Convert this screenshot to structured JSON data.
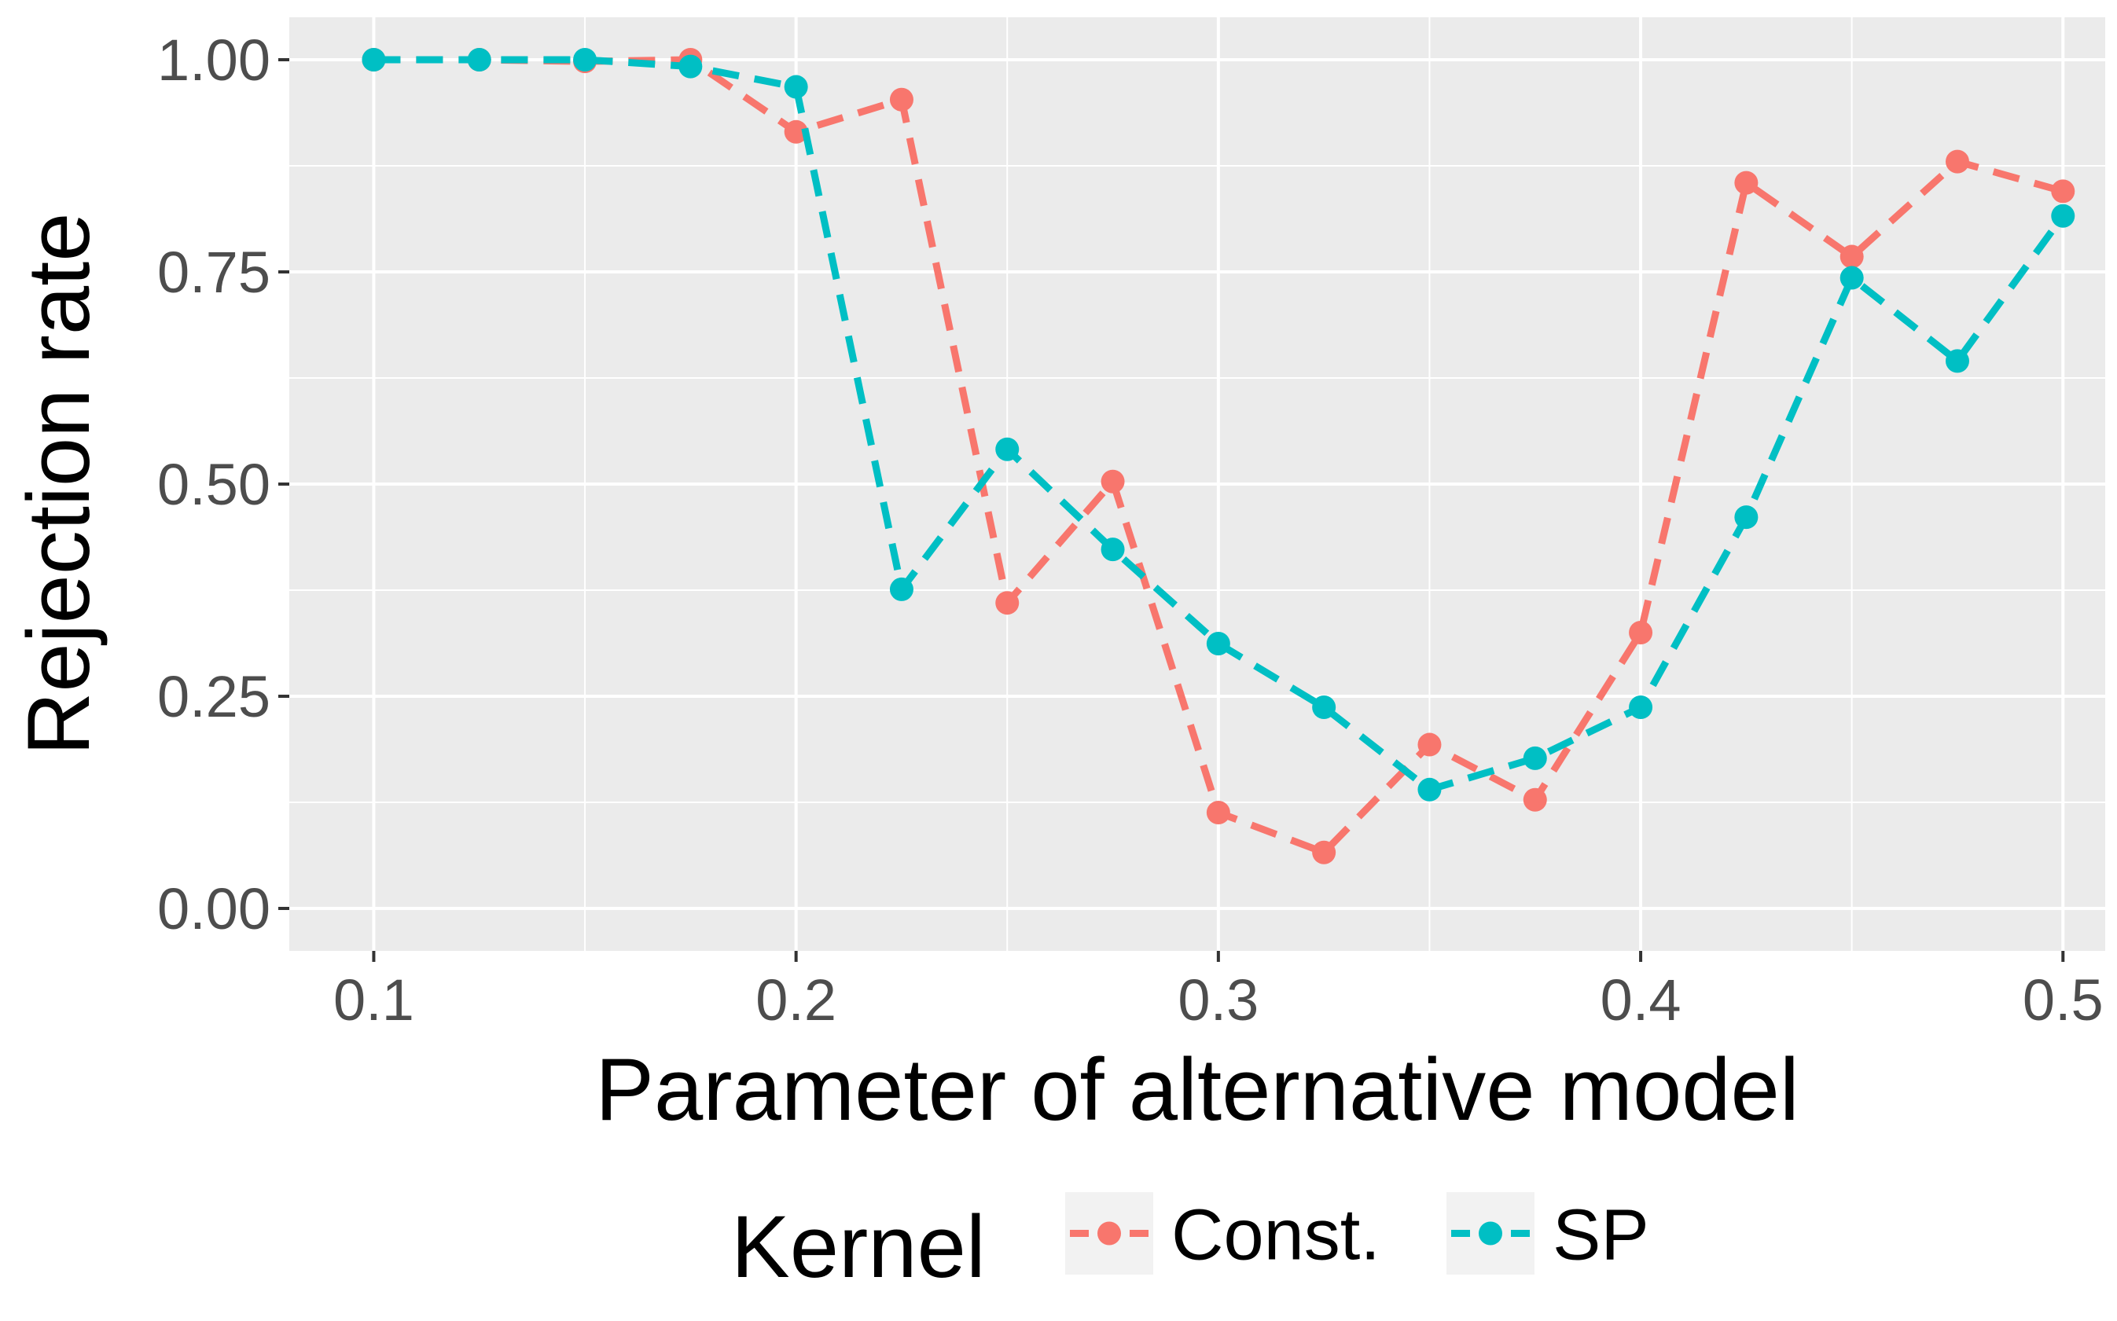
{
  "chart_data": {
    "type": "line",
    "xlabel": "Parameter of alternative model",
    "ylabel": "Rejection rate",
    "xlim": [
      0.08,
      0.51
    ],
    "ylim": [
      -0.05,
      1.05
    ],
    "x_ticks": [
      "0.1",
      "0.2",
      "0.3",
      "0.4",
      "0.5"
    ],
    "x_tick_values": [
      0.1,
      0.2,
      0.3,
      0.4,
      0.5
    ],
    "y_ticks": [
      "0.00",
      "0.25",
      "0.50",
      "0.75",
      "1.00"
    ],
    "y_tick_values": [
      0,
      0.25,
      0.5,
      0.75,
      1.0
    ],
    "grid": true,
    "legend": {
      "title": "Kernel",
      "position": "bottom",
      "entries": [
        "Const.",
        "SP"
      ]
    },
    "series": [
      {
        "name": "Const.",
        "color": "#F8766D",
        "x": [
          0.1,
          0.125,
          0.15,
          0.175,
          0.2,
          0.225,
          0.25,
          0.275,
          0.3,
          0.325,
          0.35,
          0.375,
          0.4,
          0.425,
          0.45,
          0.475,
          0.5
        ],
        "y": [
          1.0,
          1.0,
          0.998,
          1.0,
          0.915,
          0.953,
          0.36,
          0.503,
          0.113,
          0.066,
          0.193,
          0.128,
          0.325,
          0.855,
          0.768,
          0.88,
          0.845
        ]
      },
      {
        "name": "SP",
        "color": "#00BFC4",
        "x": [
          0.1,
          0.125,
          0.15,
          0.175,
          0.2,
          0.225,
          0.25,
          0.275,
          0.3,
          0.325,
          0.35,
          0.375,
          0.4,
          0.425,
          0.45,
          0.475,
          0.5
        ],
        "y": [
          1.0,
          1.0,
          1.0,
          0.992,
          0.968,
          0.376,
          0.541,
          0.423,
          0.312,
          0.237,
          0.14,
          0.177,
          0.237,
          0.461,
          0.743,
          0.645,
          0.816
        ]
      }
    ]
  }
}
